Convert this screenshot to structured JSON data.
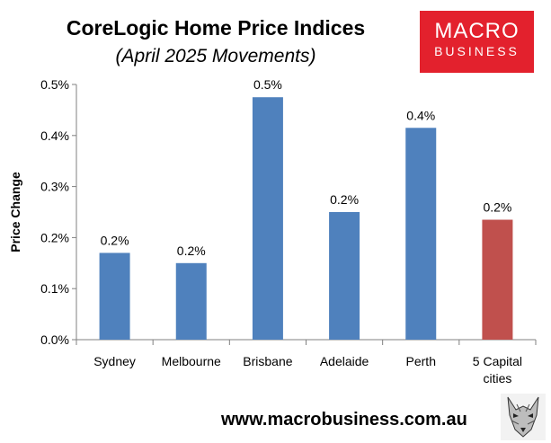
{
  "header": {
    "title": "CoreLogic Home Price Indices",
    "subtitle": "(April 2025 Movements)"
  },
  "logo": {
    "line1": "MACRO",
    "line2": "BUSINESS",
    "bg_color": "#e3212d"
  },
  "footer": {
    "url": "www.macrobusiness.com.au",
    "icon": "wolf-logo-icon"
  },
  "chart_data": {
    "type": "bar",
    "title": "CoreLogic Home Price Indices",
    "subtitle": "(April 2025 Movements)",
    "ylabel": "Price Change",
    "xlabel": "",
    "ylim": [
      0,
      0.5
    ],
    "yticks": [
      "0.0%",
      "0.1%",
      "0.2%",
      "0.3%",
      "0.4%",
      "0.5%"
    ],
    "grid": false,
    "categories": [
      [
        "Sydney"
      ],
      [
        "Melbourne"
      ],
      [
        "Brisbane"
      ],
      [
        "Adelaide"
      ],
      [
        "Perth"
      ],
      [
        "5 Capital",
        "cities"
      ]
    ],
    "values": [
      0.17,
      0.15,
      0.475,
      0.25,
      0.415,
      0.235
    ],
    "data_labels": [
      "0.2%",
      "0.2%",
      "0.5%",
      "0.2%",
      "0.4%",
      "0.2%"
    ],
    "colors": [
      "#4f81bd",
      "#4f81bd",
      "#4f81bd",
      "#4f81bd",
      "#4f81bd",
      "#c0504d"
    ]
  }
}
